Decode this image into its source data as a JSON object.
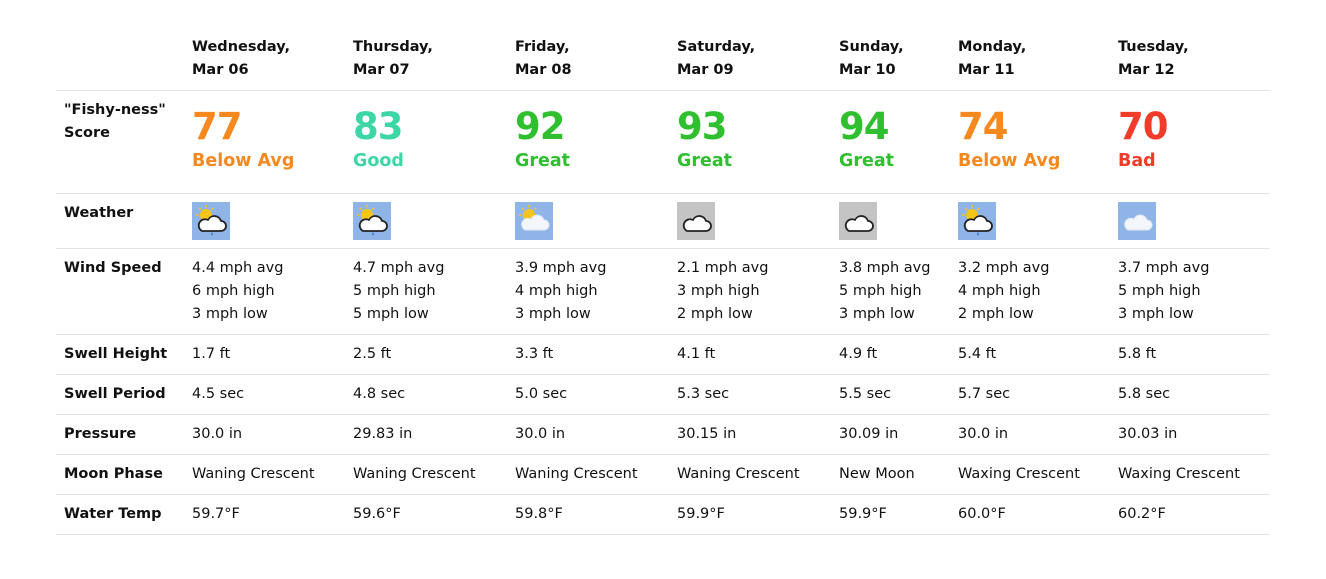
{
  "row_labels": {
    "score_line1": "\"Fishy-ness\"",
    "score_line2": "Score",
    "weather": "Weather",
    "wind": "Wind Speed",
    "swell_height": "Swell Height",
    "swell_period": "Swell Period",
    "pressure": "Pressure",
    "moon": "Moon Phase",
    "water_temp": "Water Temp"
  },
  "days": [
    {
      "day": "Wednesday,",
      "date": "Mar 06",
      "score": "77",
      "rating": "Below Avg",
      "color": "#f5891f",
      "icon": "partly-cloudy-rain-icon",
      "icon_bg": "#8fb5e8",
      "wind_avg": "4.4 mph avg",
      "wind_high": "6 mph high",
      "wind_low": "3 mph low",
      "swell_height": "1.7 ft",
      "swell_period": "4.5 sec",
      "pressure": "30.0 in",
      "moon": "Waning Crescent",
      "water_temp": "59.7°F"
    },
    {
      "day": "Thursday,",
      "date": "Mar 07",
      "score": "83",
      "rating": "Good",
      "color": "#3dd6a6",
      "icon": "partly-cloudy-rain-icon",
      "icon_bg": "#8fb5e8",
      "wind_avg": "4.7 mph avg",
      "wind_high": "5 mph high",
      "wind_low": "5 mph low",
      "swell_height": "2.5 ft",
      "swell_period": "4.8 sec",
      "pressure": "29.83 in",
      "moon": "Waning Crescent",
      "water_temp": "59.6°F"
    },
    {
      "day": "Friday,",
      "date": "Mar 08",
      "score": "92",
      "rating": "Great",
      "color": "#2fbf2f",
      "icon": "partly-cloudy-icon",
      "icon_bg": "#8fb5e8",
      "wind_avg": "3.9 mph avg",
      "wind_high": "4 mph high",
      "wind_low": "3 mph low",
      "swell_height": "3.3 ft",
      "swell_period": "5.0 sec",
      "pressure": "30.0 in",
      "moon": "Waning Crescent",
      "water_temp": "59.8°F"
    },
    {
      "day": "Saturday,",
      "date": "Mar 09",
      "score": "93",
      "rating": "Great",
      "color": "#2fbf2f",
      "icon": "cloudy-icon",
      "icon_bg": "#c4c4c4",
      "wind_avg": "2.1 mph avg",
      "wind_high": "3 mph high",
      "wind_low": "2 mph low",
      "swell_height": "4.1 ft",
      "swell_period": "5.3 sec",
      "pressure": "30.15 in",
      "moon": "Waning Crescent",
      "water_temp": "59.9°F"
    },
    {
      "day": "Sunday,",
      "date": "Mar 10",
      "score": "94",
      "rating": "Great",
      "color": "#2fbf2f",
      "icon": "cloudy-icon",
      "icon_bg": "#c4c4c4",
      "wind_avg": "3.8 mph avg",
      "wind_high": "5 mph high",
      "wind_low": "3 mph low",
      "swell_height": "4.9 ft",
      "swell_period": "5.5 sec",
      "pressure": "30.09 in",
      "moon": "New Moon",
      "water_temp": "59.9°F"
    },
    {
      "day": "Monday,",
      "date": "Mar 11",
      "score": "74",
      "rating": "Below Avg",
      "color": "#f5891f",
      "icon": "partly-cloudy-rain-icon",
      "icon_bg": "#8fb5e8",
      "wind_avg": "3.2 mph avg",
      "wind_high": "4 mph high",
      "wind_low": "2 mph low",
      "swell_height": "5.4 ft",
      "swell_period": "5.7 sec",
      "pressure": "30.0 in",
      "moon": "Waxing Crescent",
      "water_temp": "60.0°F"
    },
    {
      "day": "Tuesday,",
      "date": "Mar 12",
      "score": "70",
      "rating": "Bad",
      "color": "#f23c2a",
      "icon": "cloudy-light-icon",
      "icon_bg": "#8fb5e8",
      "wind_avg": "3.7 mph avg",
      "wind_high": "5 mph high",
      "wind_low": "3 mph low",
      "swell_height": "5.8 ft",
      "swell_period": "5.8 sec",
      "pressure": "30.03 in",
      "moon": "Waxing Crescent",
      "water_temp": "60.2°F"
    }
  ]
}
